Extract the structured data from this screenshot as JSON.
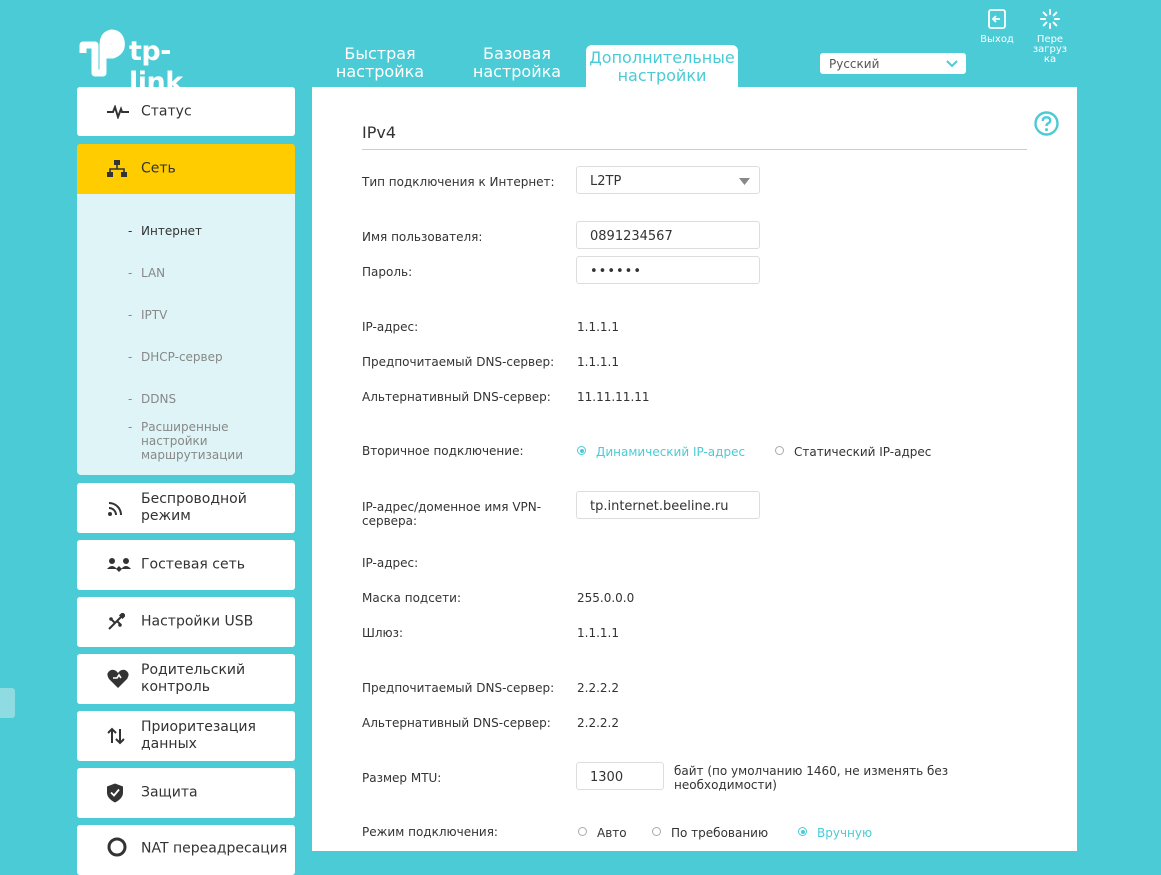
{
  "brand": {
    "logo_text": "tp-link"
  },
  "tabs": [
    {
      "label": "Быстрая настройка",
      "lines": [
        "Быстрая",
        "настройка"
      ]
    },
    {
      "label": "Базовая настройка",
      "lines": [
        "Базовая",
        "настройка"
      ]
    },
    {
      "label": "Дополнительные настройки",
      "lines": [
        "Дополнительные",
        "настройки"
      ],
      "active": true
    }
  ],
  "language": {
    "selected": "Русский"
  },
  "top_buttons": {
    "logout": "Выход",
    "reboot_lines": [
      "Пере",
      "загруз",
      "ка"
    ]
  },
  "sidebar": {
    "items": [
      {
        "label": "Статус",
        "icon": "pulse-icon"
      },
      {
        "label": "Сеть",
        "icon": "network-icon",
        "active": true
      },
      {
        "label": "Беспроводной режим",
        "icon": "wireless-icon"
      },
      {
        "label": "Гостевая сеть",
        "icon": "guest-network-icon"
      },
      {
        "label": "Настройки USB",
        "icon": "usb-icon"
      },
      {
        "label": "Родительский контроль",
        "icon": "parental-heart-icon"
      },
      {
        "label": "Приоритезация данных",
        "icon": "priority-arrows-icon"
      },
      {
        "label": "Защита",
        "icon": "shield-icon"
      },
      {
        "label": "NAT переадресация",
        "icon": "nat-icon"
      }
    ],
    "submenu": [
      {
        "label": "Интернет",
        "current": true
      },
      {
        "label": "LAN"
      },
      {
        "label": "IPTV"
      },
      {
        "label": "DHCP-сервер"
      },
      {
        "label": "DDNS"
      },
      {
        "label": "Расширенные настройки маршрутизации"
      }
    ]
  },
  "form": {
    "section_title": "IPv4",
    "connection_type": {
      "label": "Тип подключения к Интернет:",
      "value": "L2TP"
    },
    "username": {
      "label": "Имя пользователя:",
      "value": "0891234567"
    },
    "password": {
      "label": "Пароль:",
      "value": "••••••"
    },
    "ip": {
      "label": "IP-адрес:",
      "value": "1.1.1.1"
    },
    "dns1": {
      "label": "Предпочитаемый DNS-сервер:",
      "value": "1.1.1.1"
    },
    "dns2": {
      "label": "Альтернативный DNS-сервер:",
      "value": "11.11.11.11"
    },
    "secondary": {
      "label": "Вторичное подключение:",
      "option_dynamic": "Динамический IP-адрес",
      "option_static": "Статический IP-адрес",
      "selected": "dynamic"
    },
    "vpn_server": {
      "label_lines": [
        "IP-адрес/доменное имя VPN-",
        "сервера:"
      ],
      "value": "tp.internet.beeline.ru"
    },
    "sec_ip": {
      "label": "IP-адрес:",
      "value": ""
    },
    "mask": {
      "label": "Маска подсети:",
      "value": "255.0.0.0"
    },
    "gateway": {
      "label": "Шлюз:",
      "value": "1.1.1.1"
    },
    "sec_dns1": {
      "label": "Предпочитаемый DNS-сервер:",
      "value": "2.2.2.2"
    },
    "sec_dns2": {
      "label": "Альтернативный DNS-сервер:",
      "value": "2.2.2.2"
    },
    "mtu": {
      "label": "Размер MTU:",
      "value": "1300",
      "hint_lines": [
        "байт (по умолчанию 1460, не изменять без",
        "необходимости)"
      ]
    },
    "conn_mode": {
      "label": "Режим подключения:",
      "option_auto": "Авто",
      "option_demand": "По требованию",
      "option_manual": "Вручную",
      "selected": "manual"
    }
  },
  "colors": {
    "accent": "#4acbd6",
    "active_menu": "#ffcc00",
    "submenu_bg": "#def4f6"
  }
}
